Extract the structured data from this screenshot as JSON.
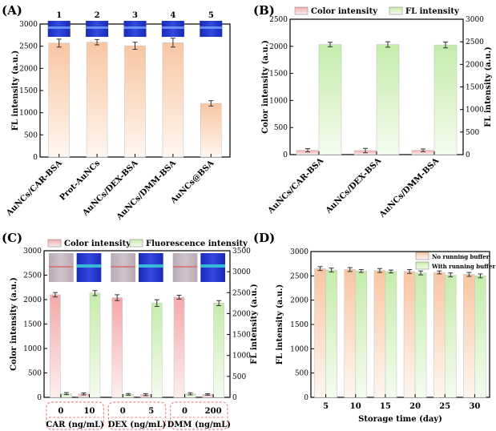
{
  "chart_data": [
    {
      "panel": "(A)",
      "type": "bar",
      "ylabel": "FL intensity (a.u.)",
      "ylim": [
        0,
        3000
      ],
      "yticks": [
        0,
        500,
        1000,
        1500,
        2000,
        2500,
        3000
      ],
      "categories": [
        "AuNCs/CAR-BSA",
        "Prot-AuNCs",
        "AuNCs/DEX-BSA",
        "AuNCs/DMM-BSA",
        "AuNCs@BSA"
      ],
      "values": [
        2570,
        2590,
        2510,
        2580,
        1210
      ],
      "errors": [
        90,
        60,
        80,
        100,
        60
      ],
      "lane_numbers": [
        "1",
        "2",
        "3",
        "4",
        "5"
      ],
      "bar_color": "#f8c9a8"
    },
    {
      "panel": "(B)",
      "type": "bar",
      "ylabel_left": "Color intensity (a.u.)",
      "ylabel_right": "FL intensity (a.u.)",
      "ylim_left": [
        0,
        2500
      ],
      "yticks_left": [
        0,
        500,
        1000,
        1500,
        2000,
        2500
      ],
      "ylim_right": [
        0,
        3000
      ],
      "yticks_right": [
        0,
        500,
        1000,
        1500,
        2000,
        2500,
        3000
      ],
      "categories": [
        "AuNCs/CAR-BSA",
        "AuNCs/DEX-BSA",
        "AuNCs/DMM-BSA"
      ],
      "series": [
        {
          "name": "Color intensity",
          "axis": "left",
          "values": [
            80,
            75,
            80
          ],
          "errors": [
            30,
            40,
            25
          ],
          "color": "#f6b6b6"
        },
        {
          "name": "FL intensity",
          "axis": "right",
          "values": [
            2440,
            2440,
            2430
          ],
          "errors": [
            50,
            60,
            65
          ],
          "color": "#ccf0b4"
        }
      ],
      "legend": "top"
    },
    {
      "panel": "(C)",
      "type": "bar",
      "ylabel_left": "Color intensity (a.u.)",
      "ylabel_right": "FL intensity (a.u.)",
      "ylim_left": [
        0,
        3000
      ],
      "yticks_left": [
        0,
        500,
        1000,
        1500,
        2000,
        2500,
        3000
      ],
      "ylim_right": [
        0,
        3500
      ],
      "yticks_right": [
        0,
        500,
        1000,
        1500,
        2000,
        2500,
        3000,
        3500
      ],
      "groups": [
        {
          "label": "CAR (ng/mL)",
          "ticks": [
            "0",
            "10"
          ]
        },
        {
          "label": "DEX (ng/mL)",
          "ticks": [
            "0",
            "5"
          ]
        },
        {
          "label": "DMM (ng/mL)",
          "ticks": [
            "0",
            "200"
          ]
        }
      ],
      "series": [
        {
          "name": "Color intensity",
          "axis": "left",
          "values": [
            2100,
            70,
            2040,
            55,
            2050,
            60
          ],
          "errors": [
            45,
            20,
            60,
            20,
            40,
            15
          ],
          "color": "#f6b6b6"
        },
        {
          "name": "Fluorescence intensity",
          "axis": "right",
          "values": [
            90,
            2490,
            70,
            2250,
            85,
            2250
          ],
          "errors": [
            25,
            60,
            20,
            80,
            25,
            60
          ],
          "color": "#ccf0b4"
        }
      ],
      "legend": "top"
    },
    {
      "panel": "(D)",
      "type": "bar",
      "xlabel": "Storage time (day)",
      "ylabel": "FL intensity (a.u.)",
      "ylim": [
        0,
        3000
      ],
      "yticks": [
        0,
        500,
        1000,
        1500,
        2000,
        2500,
        3000
      ],
      "categories": [
        "5",
        "10",
        "15",
        "20",
        "25",
        "30"
      ],
      "series": [
        {
          "name": "No running buffer",
          "values": [
            2650,
            2630,
            2610,
            2590,
            2570,
            2530
          ],
          "errors": [
            40,
            40,
            40,
            40,
            30,
            40
          ],
          "color": "#f8c9a8"
        },
        {
          "name": "With running buffer",
          "values": [
            2620,
            2600,
            2590,
            2560,
            2520,
            2500
          ],
          "errors": [
            40,
            30,
            30,
            40,
            40,
            40
          ],
          "color": "#ccf0b4"
        }
      ],
      "legend": "top-right"
    }
  ]
}
